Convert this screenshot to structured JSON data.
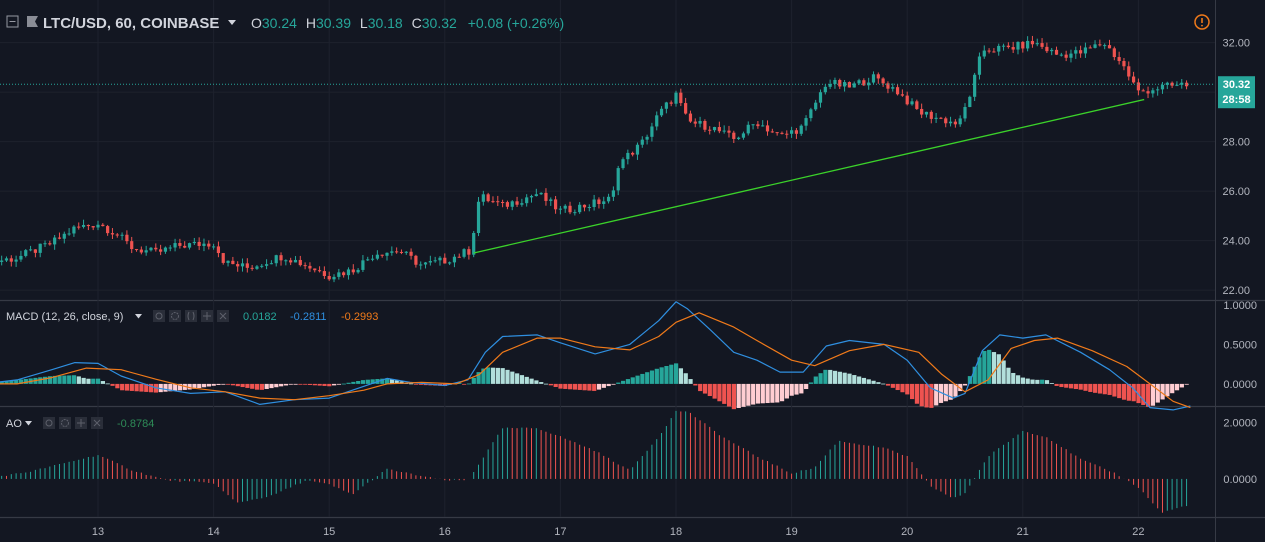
{
  "header": {
    "symbol": "LTC/USD, 60, COINBASE",
    "o_label": "O",
    "o_value": "30.24",
    "h_label": "H",
    "h_value": "30.39",
    "l_label": "L",
    "l_value": "30.18",
    "c_label": "C",
    "c_value": "30.32",
    "change": "+0.08 (+0.26%)",
    "dropdown_icon": "caret-down-icon",
    "collapse_icon": "square-minus-icon",
    "flag_icon": "flag-icon",
    "alert_icon": "exclamation-circle-icon"
  },
  "price_badge": {
    "value": "30.32",
    "countdown": "28:58"
  },
  "macd_header": {
    "label": "MACD (12, 26, close, 9)",
    "hist": "0.0182",
    "macd": "-0.2811",
    "signal": "-0.2993"
  },
  "ao_header": {
    "label": "AO",
    "value": "-0.8784"
  },
  "colors": {
    "background": "#131722",
    "up": "#26a69a",
    "down": "#ef5350",
    "trendline": "#3bd22a",
    "macd_line": "#2f8fe0",
    "signal_line": "#f07a1a",
    "hist_up_strong": "#26a69a",
    "hist_up_weak": "#b2dfdb",
    "hist_down_strong": "#ef5350",
    "hist_down_weak": "#ffcdd2",
    "ao_up": "#26a69a",
    "ao_down": "#ef5350",
    "text": "#d1d4dc"
  },
  "chart_data": [
    {
      "type": "candlestick",
      "title": "LTC/USD, 60, COINBASE",
      "x_tick_labels": [
        "13",
        "14",
        "15",
        "16",
        "17",
        "18",
        "19",
        "20",
        "21",
        "22"
      ],
      "y_tick_labels": [
        "32.00",
        "30.00",
        "28.00",
        "26.00",
        "24.00",
        "22.00"
      ],
      "ylim": [
        21.6,
        33.4
      ],
      "last_price": 30.32,
      "close_path_points": [
        [
          12.0,
          23.1
        ],
        [
          12.3,
          23.3
        ],
        [
          12.6,
          23.9
        ],
        [
          12.8,
          24.5
        ],
        [
          13.0,
          24.7
        ],
        [
          13.15,
          24.3
        ],
        [
          13.3,
          23.7
        ],
        [
          13.5,
          23.5
        ],
        [
          13.7,
          23.8
        ],
        [
          14.0,
          23.9
        ],
        [
          14.1,
          23.1
        ],
        [
          14.3,
          22.9
        ],
        [
          14.6,
          23.4
        ],
        [
          14.8,
          23.0
        ],
        [
          15.0,
          22.6
        ],
        [
          15.2,
          22.8
        ],
        [
          15.4,
          23.5
        ],
        [
          15.6,
          23.6
        ],
        [
          15.8,
          23.0
        ],
        [
          16.0,
          23.2
        ],
        [
          16.22,
          23.6
        ],
        [
          16.3,
          25.8
        ],
        [
          16.5,
          25.4
        ],
        [
          16.8,
          25.9
        ],
        [
          17.0,
          25.2
        ],
        [
          17.2,
          25.4
        ],
        [
          17.45,
          25.7
        ],
        [
          17.5,
          27.1
        ],
        [
          17.7,
          27.9
        ],
        [
          17.85,
          29.1
        ],
        [
          18.0,
          29.9
        ],
        [
          18.1,
          28.8
        ],
        [
          18.3,
          28.6
        ],
        [
          18.5,
          28.1
        ],
        [
          18.7,
          28.8
        ],
        [
          18.9,
          28.2
        ],
        [
          19.1,
          28.6
        ],
        [
          19.3,
          30.4
        ],
        [
          19.5,
          30.2
        ],
        [
          19.7,
          30.6
        ],
        [
          19.9,
          30.1
        ],
        [
          20.1,
          29.2
        ],
        [
          20.3,
          28.9
        ],
        [
          20.45,
          28.7
        ],
        [
          20.55,
          30.0
        ],
        [
          20.65,
          31.7
        ],
        [
          20.9,
          31.8
        ],
        [
          21.1,
          32.0
        ],
        [
          21.3,
          31.5
        ],
        [
          21.5,
          31.6
        ],
        [
          21.7,
          32.0
        ],
        [
          21.85,
          31.2
        ],
        [
          22.0,
          30.0
        ],
        [
          22.2,
          30.2
        ],
        [
          22.4,
          30.3
        ]
      ],
      "trendline": {
        "from": [
          16.25,
          23.5
        ],
        "to": [
          22.05,
          29.7
        ]
      }
    },
    {
      "type": "line",
      "title": "MACD (12, 26, close, 9)",
      "y_tick_labels": [
        "1.0000",
        "0.5000",
        "0.0000"
      ],
      "ylim": [
        -0.28,
        1.05
      ],
      "series": [
        {
          "name": "MACD",
          "points": [
            [
              12.0,
              0.0
            ],
            [
              12.3,
              0.05
            ],
            [
              12.6,
              0.18
            ],
            [
              12.8,
              0.27
            ],
            [
              13.0,
              0.26
            ],
            [
              13.2,
              0.1
            ],
            [
              13.5,
              -0.05
            ],
            [
              13.8,
              -0.12
            ],
            [
              14.1,
              -0.1
            ],
            [
              14.4,
              -0.26
            ],
            [
              14.7,
              -0.2
            ],
            [
              15.0,
              -0.18
            ],
            [
              15.3,
              -0.03
            ],
            [
              15.5,
              0.07
            ],
            [
              15.7,
              0.02
            ],
            [
              16.0,
              -0.02
            ],
            [
              16.2,
              0.05
            ],
            [
              16.35,
              0.4
            ],
            [
              16.5,
              0.6
            ],
            [
              16.8,
              0.62
            ],
            [
              17.0,
              0.52
            ],
            [
              17.3,
              0.38
            ],
            [
              17.6,
              0.5
            ],
            [
              17.85,
              0.8
            ],
            [
              18.0,
              1.04
            ],
            [
              18.1,
              0.95
            ],
            [
              18.3,
              0.68
            ],
            [
              18.5,
              0.4
            ],
            [
              18.7,
              0.3
            ],
            [
              18.9,
              0.15
            ],
            [
              19.1,
              0.15
            ],
            [
              19.3,
              0.48
            ],
            [
              19.5,
              0.55
            ],
            [
              19.8,
              0.5
            ],
            [
              20.0,
              0.3
            ],
            [
              20.2,
              -0.05
            ],
            [
              20.4,
              -0.18
            ],
            [
              20.5,
              -0.12
            ],
            [
              20.65,
              0.42
            ],
            [
              20.8,
              0.62
            ],
            [
              21.0,
              0.58
            ],
            [
              21.2,
              0.62
            ],
            [
              21.5,
              0.4
            ],
            [
              21.75,
              0.18
            ],
            [
              21.95,
              -0.05
            ],
            [
              22.1,
              -0.3
            ],
            [
              22.3,
              -0.33
            ],
            [
              22.45,
              -0.28
            ]
          ]
        },
        {
          "name": "Signal",
          "points": [
            [
              12.0,
              0.0
            ],
            [
              12.3,
              0.0
            ],
            [
              12.6,
              0.08
            ],
            [
              12.9,
              0.2
            ],
            [
              13.2,
              0.18
            ],
            [
              13.5,
              0.06
            ],
            [
              13.8,
              -0.05
            ],
            [
              14.1,
              -0.1
            ],
            [
              14.4,
              -0.18
            ],
            [
              14.7,
              -0.2
            ],
            [
              15.0,
              -0.15
            ],
            [
              15.3,
              -0.08
            ],
            [
              15.5,
              0.0
            ],
            [
              15.8,
              0.02
            ],
            [
              16.1,
              0.0
            ],
            [
              16.3,
              0.12
            ],
            [
              16.5,
              0.4
            ],
            [
              16.8,
              0.58
            ],
            [
              17.0,
              0.58
            ],
            [
              17.3,
              0.47
            ],
            [
              17.6,
              0.43
            ],
            [
              17.85,
              0.6
            ],
            [
              18.0,
              0.78
            ],
            [
              18.2,
              0.9
            ],
            [
              18.5,
              0.72
            ],
            [
              18.7,
              0.55
            ],
            [
              19.0,
              0.3
            ],
            [
              19.2,
              0.23
            ],
            [
              19.5,
              0.42
            ],
            [
              19.8,
              0.5
            ],
            [
              20.1,
              0.4
            ],
            [
              20.3,
              0.12
            ],
            [
              20.5,
              -0.1
            ],
            [
              20.7,
              0.05
            ],
            [
              20.9,
              0.45
            ],
            [
              21.1,
              0.55
            ],
            [
              21.3,
              0.58
            ],
            [
              21.6,
              0.42
            ],
            [
              21.9,
              0.22
            ],
            [
              22.1,
              0.0
            ],
            [
              22.3,
              -0.22
            ],
            [
              22.45,
              -0.3
            ]
          ]
        }
      ]
    },
    {
      "type": "bar",
      "title": "AO",
      "y_tick_labels": [
        "2.0000",
        "0.0000"
      ],
      "ylim": [
        -1.35,
        2.55
      ],
      "series": [
        {
          "name": "AO",
          "points": [
            [
              12.0,
              0.0
            ],
            [
              12.4,
              0.25
            ],
            [
              12.8,
              0.65
            ],
            [
              13.0,
              0.85
            ],
            [
              13.3,
              0.3
            ],
            [
              13.6,
              -0.05
            ],
            [
              14.0,
              -0.15
            ],
            [
              14.2,
              -0.85
            ],
            [
              14.5,
              -0.6
            ],
            [
              14.8,
              -0.05
            ],
            [
              15.0,
              -0.2
            ],
            [
              15.2,
              -0.55
            ],
            [
              15.5,
              0.35
            ],
            [
              15.8,
              0.1
            ],
            [
              16.0,
              -0.05
            ],
            [
              16.2,
              -0.05
            ],
            [
              16.5,
              1.8
            ],
            [
              16.8,
              1.8
            ],
            [
              17.0,
              1.5
            ],
            [
              17.3,
              1.0
            ],
            [
              17.6,
              0.3
            ],
            [
              17.85,
              1.5
            ],
            [
              18.0,
              2.4
            ],
            [
              18.1,
              2.4
            ],
            [
              18.4,
              1.5
            ],
            [
              18.7,
              0.8
            ],
            [
              19.0,
              0.2
            ],
            [
              19.2,
              0.4
            ],
            [
              19.4,
              1.35
            ],
            [
              19.8,
              1.1
            ],
            [
              20.0,
              0.8
            ],
            [
              20.2,
              -0.25
            ],
            [
              20.4,
              -0.7
            ],
            [
              20.5,
              -0.5
            ],
            [
              20.7,
              0.8
            ],
            [
              21.0,
              1.7
            ],
            [
              21.2,
              1.5
            ],
            [
              21.5,
              0.7
            ],
            [
              21.8,
              0.2
            ],
            [
              22.0,
              -0.3
            ],
            [
              22.2,
              -1.2
            ],
            [
              22.45,
              -0.9
            ]
          ]
        }
      ]
    }
  ]
}
